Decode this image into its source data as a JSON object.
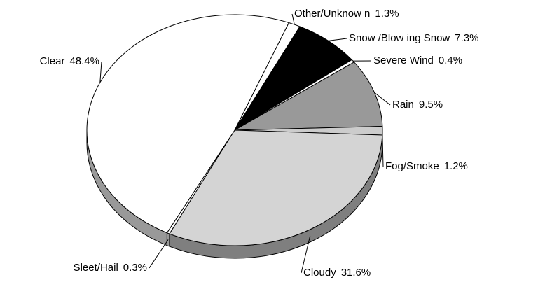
{
  "chart_data": {
    "type": "pie",
    "categories": [
      "Other/Unknow n",
      "Snow /Blow ing Snow",
      "Severe Wind",
      "Rain",
      "Fog/Smoke",
      "Cloudy",
      "Sleet/Hail",
      "Clear"
    ],
    "values": [
      1.3,
      7.3,
      0.4,
      9.5,
      1.2,
      31.6,
      0.3,
      48.4
    ],
    "value_labels": [
      "1.3%",
      "7.3%",
      "0.4%",
      "9.5%",
      "1.2%",
      "31.6%",
      "0.3%",
      "48.4%"
    ],
    "colors": [
      "#ffffff",
      "#000000",
      "#ffffff",
      "#999999",
      "#cccccc",
      "#d4d4d4",
      "#ffffff",
      "#ffffff"
    ]
  }
}
